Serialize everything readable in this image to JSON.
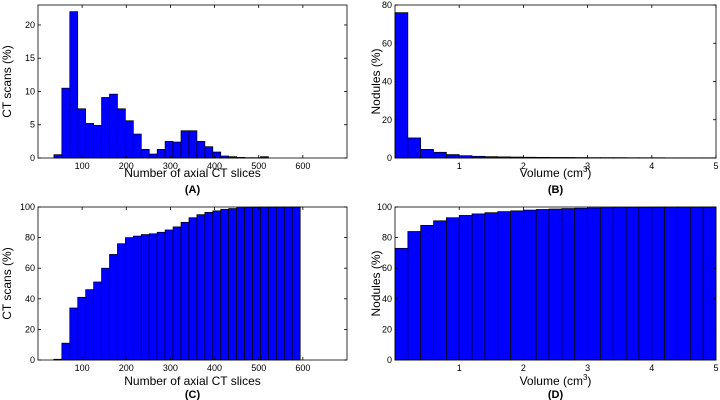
{
  "colors": {
    "bar_fill": "#0000ff",
    "bar_stroke": "#000000",
    "axis": "#000000",
    "background": "#ffffff"
  },
  "chart_data": [
    {
      "id": "A",
      "type": "bar",
      "panel_label": "(A)",
      "xlabel": "Number of axial CT slices",
      "ylabel": "CT scans  (%)",
      "xlim": [
        0,
        700
      ],
      "ylim": [
        0,
        23
      ],
      "x_ticks": [
        100,
        200,
        300,
        400,
        500,
        600
      ],
      "y_ticks": [
        0,
        5,
        10,
        15,
        20
      ],
      "bin_width": 18,
      "bin_centers": [
        45,
        63,
        81,
        99,
        117,
        135,
        153,
        171,
        189,
        207,
        225,
        243,
        261,
        279,
        297,
        315,
        333,
        351,
        369,
        387,
        405,
        423,
        441,
        459,
        477,
        495,
        513,
        531,
        549,
        567,
        585,
        603
      ],
      "values": [
        0.5,
        10.5,
        22.0,
        7.4,
        5.2,
        4.9,
        9.1,
        9.6,
        7.4,
        5.6,
        3.6,
        1.3,
        0.6,
        1.3,
        2.5,
        2.4,
        4.1,
        4.1,
        2.5,
        1.7,
        0.9,
        0.3,
        0.2,
        0.1,
        0.05,
        0.05,
        0.2,
        0.0,
        0.0,
        0.0,
        0.0,
        0.0
      ]
    },
    {
      "id": "B",
      "type": "bar",
      "panel_label": "(B)",
      "xlabel": "Volume  (cm",
      "xlabel_sup": "3",
      "xlabel_end": ")",
      "ylabel": "Nodules  (%)",
      "xlim": [
        0,
        5
      ],
      "ylim": [
        0,
        80
      ],
      "x_ticks": [
        1,
        2,
        3,
        4,
        5
      ],
      "y_ticks": [
        0,
        20,
        40,
        60,
        80
      ],
      "bin_width": 0.2,
      "bin_centers": [
        0.1,
        0.3,
        0.5,
        0.7,
        0.9,
        1.1,
        1.3,
        1.5,
        1.7,
        1.9,
        2.1,
        2.3,
        2.5,
        2.7,
        2.9,
        3.1,
        3.3,
        3.5,
        3.7,
        3.9,
        4.1,
        4.3,
        4.5,
        4.7,
        4.9
      ],
      "values": [
        76,
        10.5,
        4.5,
        3.0,
        1.8,
        1.2,
        0.9,
        0.7,
        0.6,
        0.5,
        0.4,
        0.35,
        0.3,
        0.3,
        0.25,
        0.2,
        0.2,
        0.2,
        0.15,
        0.15,
        0.15,
        0.1,
        0.1,
        0.1,
        0.1
      ]
    },
    {
      "id": "C",
      "type": "bar",
      "panel_label": "(C)",
      "xlabel": "Number of axial CT slices",
      "ylabel": "CT scans  (%)",
      "xlim": [
        0,
        700
      ],
      "ylim": [
        0,
        100
      ],
      "x_ticks": [
        100,
        200,
        300,
        400,
        500,
        600
      ],
      "y_ticks": [
        0,
        20,
        40,
        60,
        80,
        100
      ],
      "bin_width": 18,
      "bin_centers": [
        45,
        63,
        81,
        99,
        117,
        135,
        153,
        171,
        189,
        207,
        225,
        243,
        261,
        279,
        297,
        315,
        333,
        351,
        369,
        387,
        405,
        423,
        441,
        459,
        477,
        495,
        513,
        531,
        549,
        567,
        585
      ],
      "values": [
        0.5,
        11,
        34,
        41,
        46,
        51,
        60,
        69,
        76,
        80,
        81,
        82,
        82.5,
        83.5,
        85,
        87,
        90,
        93,
        95,
        96.5,
        97.5,
        98.5,
        99,
        99.5,
        99.7,
        99.8,
        99.9,
        100,
        100,
        100,
        100
      ]
    },
    {
      "id": "D",
      "type": "bar",
      "panel_label": "(D)",
      "xlabel": "Volume  (cm",
      "xlabel_sup": "3",
      "xlabel_end": ")",
      "ylabel": "Nodules  (%)",
      "xlim": [
        0,
        5
      ],
      "ylim": [
        0,
        100
      ],
      "x_ticks": [
        1,
        2,
        3,
        4,
        5
      ],
      "y_ticks": [
        0,
        20,
        40,
        60,
        80,
        100
      ],
      "bin_width": 0.2,
      "bin_centers": [
        0.1,
        0.3,
        0.5,
        0.7,
        0.9,
        1.1,
        1.3,
        1.5,
        1.7,
        1.9,
        2.1,
        2.3,
        2.5,
        2.7,
        2.9,
        3.1,
        3.3,
        3.5,
        3.7,
        3.9,
        4.1,
        4.3,
        4.5,
        4.7,
        4.9
      ],
      "values": [
        73,
        84,
        88,
        91,
        93,
        94.5,
        95.5,
        96.3,
        97,
        97.5,
        98,
        98.4,
        98.7,
        99,
        99.2,
        99.4,
        99.5,
        99.6,
        99.7,
        99.8,
        99.85,
        99.9,
        99.95,
        100,
        100
      ]
    }
  ]
}
